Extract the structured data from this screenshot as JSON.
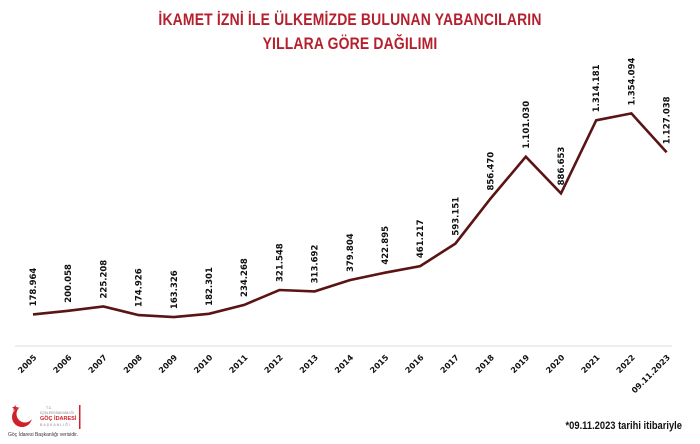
{
  "header": {
    "title_line1": "İKAMET İZNİ İLE ÜLKEMİZDE BULUNAN YABANCILARIN",
    "title_line2": "YILLARA GÖRE DAĞILIMI"
  },
  "colors": {
    "title": "#b5202e",
    "line": "#5a1414",
    "axis": "#e8e8e8",
    "logo_red": "#d0202a"
  },
  "chart_data": {
    "type": "line",
    "title": "İKAMET İZNİ İLE ÜLKEMİZDE BULUNAN YABANCILARIN YILLARA GÖRE DAĞILIMI",
    "xlabel": "",
    "ylabel": "",
    "grid": false,
    "legend": "none",
    "categories": [
      "2005",
      "2006",
      "2007",
      "2008",
      "2009",
      "2010",
      "2011",
      "2012",
      "2013",
      "2014",
      "2015",
      "2016",
      "2017",
      "2018",
      "2019",
      "2020",
      "2021",
      "2022",
      "09.11.2023"
    ],
    "values": [
      178964,
      200058,
      225208,
      174926,
      163326,
      182301,
      234268,
      321548,
      313692,
      379804,
      422895,
      461217,
      593151,
      856470,
      1101030,
      886653,
      1314181,
      1354094,
      1127038
    ],
    "value_labels": [
      "178.964",
      "200.058",
      "225.208",
      "174.926",
      "163.326",
      "182.301",
      "234.268",
      "321.548",
      "313.692",
      "379.804",
      "422.895",
      "461.217",
      "593.151",
      "856.470",
      "1.101.030",
      "886.653",
      "1.314.181",
      "1.354.094",
      "1.127.038"
    ],
    "ylim": [
      0,
      1400000
    ]
  },
  "footer": {
    "logo_lines": [
      "T.C.",
      "İÇİŞLERİ BAKANLIĞI",
      "GÖÇ İDARESİ",
      "BAŞKANLIĞI"
    ],
    "logo_caption": "Göç İdaresi Başkanlığı verisidir.",
    "footnote": "*09.11.2023 tarihi itibariyle"
  }
}
